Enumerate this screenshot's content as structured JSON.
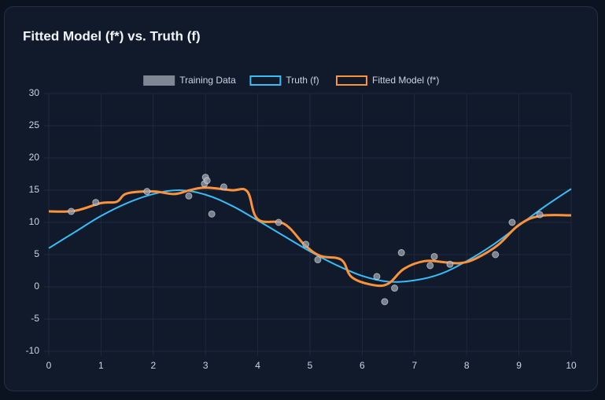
{
  "chart_data": {
    "type": "line",
    "title": "Fitted Model (f*) vs. Truth (f)",
    "xlim": [
      0,
      10
    ],
    "xticks": [
      0,
      1,
      2,
      3,
      4,
      5,
      6,
      7,
      8,
      9,
      10
    ],
    "ylim": [
      -10,
      30
    ],
    "yticks": [
      -10,
      -5,
      0,
      5,
      10,
      15,
      20,
      25,
      30
    ],
    "grid": true,
    "legend": "top",
    "series": [
      {
        "name": "Training Data",
        "type": "scatter",
        "color": "#9ca3af",
        "x": [
          0.43,
          0.9,
          1.88,
          2.68,
          2.98,
          3.0,
          3.03,
          3.12,
          3.35,
          4.4,
          4.92,
          5.15,
          6.28,
          6.43,
          6.62,
          6.75,
          7.3,
          7.38,
          7.68,
          8.55,
          8.87,
          9.4
        ],
        "values": [
          11.7,
          13.1,
          14.8,
          14.1,
          16.0,
          17.0,
          16.5,
          11.3,
          15.5,
          10.0,
          6.6,
          4.2,
          1.6,
          -2.3,
          -0.2,
          5.3,
          3.3,
          4.7,
          3.5,
          5.0,
          10.0,
          11.2
        ]
      },
      {
        "name": "Truth (f)",
        "type": "line",
        "color": "#38bdf8",
        "x": [
          0,
          0.5,
          1,
          1.5,
          2,
          2.5,
          3,
          3.5,
          4,
          4.5,
          5,
          5.5,
          6,
          6.5,
          7,
          7.5,
          8,
          8.5,
          9,
          9.5,
          10
        ],
        "values": [
          6.0,
          8.5,
          11.0,
          13.0,
          14.4,
          15.0,
          14.3,
          12.6,
          10.3,
          7.9,
          5.5,
          3.4,
          1.7,
          0.8,
          1.0,
          2.0,
          4.0,
          6.5,
          9.5,
          12.5,
          15.2
        ]
      },
      {
        "name": "Fitted Model (f*)",
        "type": "line",
        "color": "#fb923c",
        "x": [
          0,
          0.5,
          1,
          1.3,
          1.5,
          2,
          2.4,
          2.7,
          3,
          3.5,
          3.8,
          4,
          4.5,
          4.9,
          5.2,
          5.6,
          5.8,
          6.2,
          6.5,
          6.8,
          7.2,
          7.6,
          7.9,
          8.2,
          8.6,
          9,
          9.4,
          10
        ],
        "values": [
          11.7,
          11.8,
          13.0,
          13.2,
          14.5,
          14.8,
          14.4,
          15.0,
          15.4,
          15.0,
          14.8,
          10.5,
          9.8,
          6.5,
          4.8,
          4.2,
          1.5,
          0.3,
          0.5,
          2.8,
          4.0,
          3.8,
          3.7,
          4.5,
          6.5,
          9.6,
          11.0,
          11.1
        ]
      }
    ]
  }
}
